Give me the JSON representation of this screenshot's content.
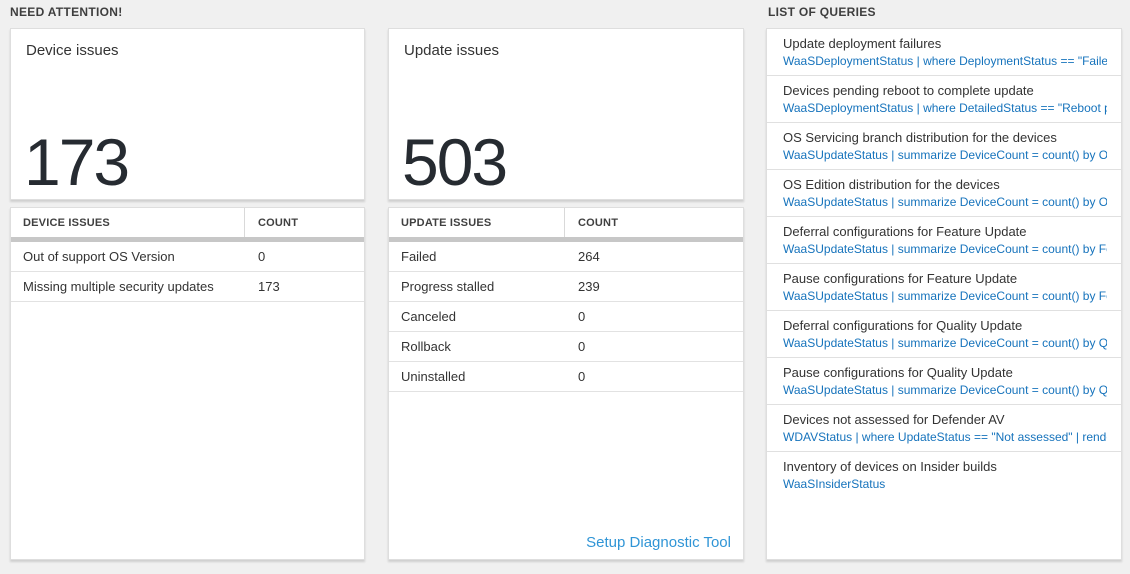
{
  "sections": {
    "need_attention": {
      "label": "NEED ATTENTION!"
    },
    "list_of_queries": {
      "label": "LIST OF QUERIES"
    }
  },
  "device_card": {
    "title": "Device issues",
    "count": "173"
  },
  "update_card": {
    "title": "Update issues",
    "count": "503"
  },
  "device_table": {
    "headers": {
      "issue": "DEVICE ISSUES",
      "count": "COUNT"
    },
    "rows": [
      {
        "label": "Out of support OS Version",
        "count": "0"
      },
      {
        "label": "Missing multiple security updates",
        "count": "173"
      }
    ]
  },
  "update_table": {
    "headers": {
      "issue": "UPDATE ISSUES",
      "count": "COUNT"
    },
    "rows": [
      {
        "label": "Failed",
        "count": "264"
      },
      {
        "label": "Progress stalled",
        "count": "239"
      },
      {
        "label": "Canceled",
        "count": "0"
      },
      {
        "label": "Rollback",
        "count": "0"
      },
      {
        "label": "Uninstalled",
        "count": "0"
      }
    ],
    "footer_link": "Setup Diagnostic Tool"
  },
  "queries": [
    {
      "title": "Update deployment failures",
      "query": "WaaSDeploymentStatus | where DeploymentStatus == \"Failed\" |..."
    },
    {
      "title": "Devices pending reboot to complete update",
      "query": "WaaSDeploymentStatus | where DetailedStatus == \"Reboot pend..."
    },
    {
      "title": "OS Servicing branch distribution for the devices",
      "query": "WaaSUpdateStatus | summarize DeviceCount = count() by OSSer..."
    },
    {
      "title": "OS Edition distribution for the devices",
      "query": "WaaSUpdateStatus | summarize DeviceCount = count() by OSEdit..."
    },
    {
      "title": "Deferral configurations for Feature Update",
      "query": "WaaSUpdateStatus | summarize DeviceCount = count() by Featur..."
    },
    {
      "title": "Pause configurations for Feature Update",
      "query": "WaaSUpdateStatus | summarize DeviceCount = count() by Featur..."
    },
    {
      "title": "Deferral configurations for Quality Update",
      "query": "WaaSUpdateStatus | summarize DeviceCount = count() by Qualit..."
    },
    {
      "title": "Pause configurations for Quality Update",
      "query": "WaaSUpdateStatus | summarize DeviceCount = count() by Qualit..."
    },
    {
      "title": "Devices not assessed for Defender AV",
      "query": "WDAVStatus | where UpdateStatus == \"Not assessed\" | render ta..."
    },
    {
      "title": "Inventory of devices on Insider builds",
      "query": "WaaSInsiderStatus"
    }
  ],
  "colors": {
    "page_background": "#f0f0f0",
    "card_background": "#ffffff",
    "query_link_blue": "#1673bc",
    "footer_link_blue": "#3095d6",
    "big_number": "#262b31",
    "gray_bar": "#c7c7c7"
  }
}
